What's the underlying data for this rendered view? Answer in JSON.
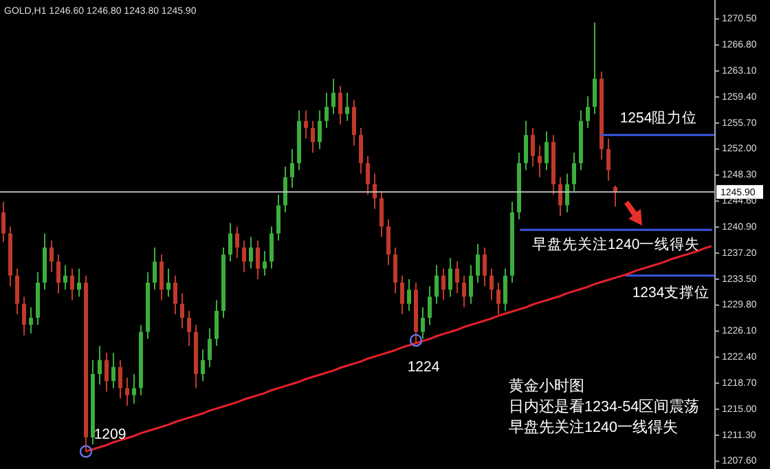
{
  "chart_data": {
    "type": "candlestick",
    "title": "GOLD,H1  1246.60 1246.80 1243.80 1245.90",
    "categories": [
      null,
      null,
      null,
      null,
      null,
      null,
      null,
      null,
      null,
      null,
      null,
      null,
      null,
      null,
      null,
      null,
      null,
      null,
      null,
      null,
      null,
      null,
      null,
      null,
      null,
      null,
      null,
      null,
      null,
      null,
      null,
      null,
      null,
      null,
      null,
      null,
      null,
      null,
      null,
      null,
      null,
      null,
      null,
      null,
      null,
      null,
      null,
      null,
      null,
      null,
      null,
      null,
      null,
      null,
      null,
      null,
      null,
      null,
      null,
      null,
      null,
      null,
      null,
      null,
      null,
      null,
      null,
      null,
      null,
      null,
      null,
      null,
      null,
      null,
      null,
      null,
      null,
      null,
      null,
      null,
      null,
      null,
      null,
      null,
      null,
      null,
      null,
      null,
      null,
      null,
      null,
      null,
      null,
      null,
      null,
      null,
      null,
      null,
      null,
      null,
      null,
      null,
      null,
      null
    ],
    "ohlc": [
      [
        1243,
        1244.5,
        1238.8,
        1240
      ],
      [
        1240,
        1241,
        1232.5,
        1234
      ],
      [
        1234,
        1235,
        1228.5,
        1230
      ],
      [
        1230,
        1231,
        1225.5,
        1227
      ],
      [
        1227,
        1229.5,
        1225.8,
        1228
      ],
      [
        1228,
        1234.5,
        1227,
        1233
      ],
      [
        1233,
        1240,
        1232,
        1238
      ],
      [
        1238,
        1239,
        1234.5,
        1236
      ],
      [
        1236,
        1237,
        1231.5,
        1233
      ],
      [
        1233,
        1235.5,
        1232,
        1234
      ],
      [
        1234,
        1235,
        1230.5,
        1232
      ],
      [
        1232,
        1235,
        1231,
        1233
      ],
      [
        1233,
        1234,
        1209,
        1211
      ],
      [
        1211,
        1222,
        1210,
        1220
      ],
      [
        1220,
        1224,
        1218.5,
        1222
      ],
      [
        1222,
        1223,
        1217.5,
        1219
      ],
      [
        1219,
        1223,
        1218,
        1221
      ],
      [
        1221,
        1222,
        1216.5,
        1218
      ],
      [
        1218,
        1219.5,
        1215.5,
        1217
      ],
      [
        1217,
        1220,
        1215.8,
        1218
      ],
      [
        1218,
        1227,
        1217,
        1226
      ],
      [
        1226,
        1234.5,
        1225,
        1233
      ],
      [
        1233,
        1238,
        1232,
        1236
      ],
      [
        1236,
        1237,
        1230.5,
        1232
      ],
      [
        1232,
        1235,
        1231,
        1233
      ],
      [
        1233,
        1234,
        1228.5,
        1230
      ],
      [
        1230,
        1231.5,
        1226.5,
        1228
      ],
      [
        1228,
        1229,
        1224,
        1226
      ],
      [
        1226,
        1227,
        1218,
        1220
      ],
      [
        1220,
        1223.5,
        1219,
        1222
      ],
      [
        1222,
        1226.5,
        1221,
        1225
      ],
      [
        1225,
        1230.5,
        1224,
        1229
      ],
      [
        1229,
        1238,
        1228,
        1237
      ],
      [
        1237,
        1241.5,
        1236,
        1240
      ],
      [
        1240,
        1241,
        1236.5,
        1238
      ],
      [
        1238,
        1239,
        1234.5,
        1236
      ],
      [
        1236,
        1239.5,
        1235,
        1238
      ],
      [
        1238,
        1239,
        1233.5,
        1235
      ],
      [
        1235,
        1237.5,
        1234,
        1236
      ],
      [
        1236,
        1241,
        1235,
        1240
      ],
      [
        1240,
        1245.5,
        1239,
        1244
      ],
      [
        1244,
        1249.5,
        1243,
        1248
      ],
      [
        1248,
        1252,
        1246.5,
        1250
      ],
      [
        1250,
        1257.5,
        1249,
        1256
      ],
      [
        1256,
        1257.5,
        1253.5,
        1255
      ],
      [
        1255,
        1256,
        1251.5,
        1253
      ],
      [
        1253,
        1257.5,
        1252,
        1256
      ],
      [
        1256,
        1260,
        1255,
        1258
      ],
      [
        1258,
        1262,
        1257,
        1260
      ],
      [
        1260,
        1261,
        1255.5,
        1257
      ],
      [
        1257,
        1260,
        1256,
        1258
      ],
      [
        1258,
        1259,
        1252.5,
        1254
      ],
      [
        1254,
        1255,
        1248.5,
        1250
      ],
      [
        1250,
        1251,
        1245.5,
        1247
      ],
      [
        1247,
        1248.5,
        1243.5,
        1245
      ],
      [
        1245,
        1246,
        1239.5,
        1241
      ],
      [
        1241,
        1242,
        1235.5,
        1237
      ],
      [
        1237,
        1238,
        1231.5,
        1233
      ],
      [
        1233,
        1234,
        1228.5,
        1230
      ],
      [
        1230,
        1233.5,
        1229,
        1232
      ],
      [
        1232,
        1233,
        1224.5,
        1226
      ],
      [
        1226,
        1229.5,
        1225,
        1228
      ],
      [
        1228,
        1232.5,
        1227,
        1231
      ],
      [
        1231,
        1235.5,
        1230,
        1234
      ],
      [
        1234,
        1235,
        1230.5,
        1232
      ],
      [
        1232,
        1236.5,
        1231,
        1235
      ],
      [
        1235,
        1236,
        1231.5,
        1233
      ],
      [
        1233,
        1234,
        1229.5,
        1231
      ],
      [
        1231,
        1235.5,
        1230,
        1234
      ],
      [
        1234,
        1238.5,
        1233,
        1237
      ],
      [
        1237,
        1238,
        1232.5,
        1234
      ],
      [
        1234,
        1235,
        1230.5,
        1232
      ],
      [
        1232,
        1233,
        1228.5,
        1230
      ],
      [
        1230,
        1235,
        1229,
        1234
      ],
      [
        1234,
        1244.5,
        1233,
        1243
      ],
      [
        1243,
        1251.5,
        1242,
        1250
      ],
      [
        1250,
        1256,
        1249,
        1254
      ],
      [
        1254,
        1255,
        1249.5,
        1251
      ],
      [
        1251,
        1252.5,
        1248,
        1250
      ],
      [
        1250,
        1254.5,
        1249,
        1253
      ],
      [
        1253,
        1254,
        1245.5,
        1247
      ],
      [
        1247,
        1248,
        1242.5,
        1244
      ],
      [
        1244,
        1248.5,
        1243,
        1247
      ],
      [
        1247,
        1251.5,
        1246,
        1250
      ],
      [
        1250,
        1257.5,
        1249,
        1256
      ],
      [
        1256,
        1259.5,
        1255,
        1258
      ],
      [
        1258,
        1270,
        1257,
        1262
      ],
      [
        1262,
        1263,
        1250.5,
        1252
      ],
      [
        1252,
        1253.5,
        1247.5,
        1249
      ],
      [
        1246.6,
        1246.8,
        1243.8,
        1245.9
      ],
      null,
      null,
      null,
      null,
      null,
      null,
      null,
      null,
      null,
      null,
      null,
      null,
      null,
      null
    ],
    "colors": [
      "#c0392b",
      "#c0392b",
      "#c0392b",
      "#c0392b",
      "#3dae3d",
      "#3dae3d",
      "#3dae3d",
      "#c0392b",
      "#c0392b",
      "#3dae3d",
      "#c0392b",
      "#3dae3d",
      "#c0392b",
      "#3dae3d",
      "#3dae3d",
      "#c0392b",
      "#3dae3d",
      "#c0392b",
      "#c0392b",
      "#3dae3d",
      "#3dae3d",
      "#3dae3d",
      "#3dae3d",
      "#c0392b",
      "#3dae3d",
      "#c0392b",
      "#c0392b",
      "#c0392b",
      "#c0392b",
      "#3dae3d",
      "#3dae3d",
      "#3dae3d",
      "#3dae3d",
      "#3dae3d",
      "#c0392b",
      "#c0392b",
      "#3dae3d",
      "#c0392b",
      "#3dae3d",
      "#3dae3d",
      "#3dae3d",
      "#3dae3d",
      "#3dae3d",
      "#3dae3d",
      "#c0392b",
      "#c0392b",
      "#3dae3d",
      "#3dae3d",
      "#3dae3d",
      "#c0392b",
      "#3dae3d",
      "#c0392b",
      "#c0392b",
      "#c0392b",
      "#c0392b",
      "#c0392b",
      "#c0392b",
      "#c0392b",
      "#c0392b",
      "#3dae3d",
      "#c0392b",
      "#3dae3d",
      "#3dae3d",
      "#3dae3d",
      "#c0392b",
      "#3dae3d",
      "#c0392b",
      "#c0392b",
      "#3dae3d",
      "#3dae3d",
      "#c0392b",
      "#c0392b",
      "#c0392b",
      "#3dae3d",
      "#3dae3d",
      "#3dae3d",
      "#3dae3d",
      "#c0392b",
      "#c0392b",
      "#3dae3d",
      "#c0392b",
      "#c0392b",
      "#3dae3d",
      "#3dae3d",
      "#3dae3d",
      "#3dae3d",
      "#3dae3d",
      "#c0392b",
      "#c0392b",
      "#c0392b",
      null,
      null,
      null,
      null,
      null,
      null,
      null,
      null,
      null,
      null,
      null,
      null,
      null,
      null
    ],
    "series": [
      {
        "type": "line",
        "color": "#e8202a",
        "values": [
          null,
          null,
          null,
          null,
          null,
          null,
          null,
          null,
          null,
          null,
          null,
          null,
          1209.0,
          1209.3,
          1209.6,
          1209.9,
          1210.3,
          1210.6,
          1210.9,
          1211.2,
          1211.6,
          1211.9,
          1212.2,
          1212.5,
          1212.8,
          1213.2,
          1213.5,
          1213.8,
          1214.1,
          1214.4,
          1214.8,
          1215.1,
          1215.4,
          1215.7,
          1216.0,
          1216.4,
          1216.7,
          1217.0,
          1217.3,
          1217.7,
          1218.0,
          1218.3,
          1218.6,
          1218.9,
          1219.3,
          1219.6,
          1219.9,
          1220.2,
          1220.5,
          1220.9,
          1221.2,
          1221.5,
          1221.8,
          1222.2,
          1222.5,
          1222.8,
          1223.1,
          1223.4,
          1223.8,
          1224.1,
          1224.4,
          1224.7,
          1225.0,
          1225.4,
          1225.7,
          1226.0,
          1226.3,
          1226.7,
          1227.0,
          1227.3,
          1227.6,
          1227.9,
          1228.3,
          1228.6,
          1228.9,
          1229.2,
          1229.5,
          1229.9,
          1230.2,
          1230.5,
          1230.8,
          1231.1,
          1231.5,
          1231.8,
          1232.1,
          1232.4,
          1232.8,
          1233.1,
          1233.4,
          1233.7,
          1234.0,
          1234.3,
          1234.7,
          1235.0,
          1235.3,
          1235.6,
          1235.9,
          1236.3,
          1236.6,
          1236.9,
          1237.2,
          1237.5,
          1237.9,
          1238.2
        ]
      },
      {
        "type": "scatter",
        "marker": "circle",
        "color": "#6a78e8",
        "values": [
          null,
          null,
          null,
          null,
          null,
          null,
          null,
          null,
          null,
          null,
          null,
          null,
          1209,
          null,
          null,
          null,
          null,
          null,
          null,
          null,
          null,
          null,
          null,
          null,
          null,
          null,
          null,
          null,
          null,
          null,
          null,
          null,
          null,
          null,
          null,
          null,
          null,
          null,
          null,
          null,
          null,
          null,
          null,
          null,
          null,
          null,
          null,
          null,
          null,
          null,
          null,
          null,
          null,
          null,
          null,
          null,
          null,
          null,
          null,
          null,
          1224.8,
          null,
          null,
          null,
          null,
          null,
          null,
          null,
          null,
          null,
          null,
          null,
          null,
          null,
          null,
          null,
          null,
          null,
          null,
          null,
          null,
          null,
          null,
          null,
          null,
          null,
          null,
          null,
          null,
          null,
          null,
          null,
          null,
          null,
          null,
          null,
          null,
          null,
          null,
          null,
          null,
          null,
          null,
          null
        ]
      }
    ],
    "ref_lines": [
      {
        "axis": "y",
        "value": 1245.9,
        "label": "1245.90",
        "color": "#c8c8c8"
      },
      {
        "axis": "y",
        "value": 1254,
        "label": "1254阻力位",
        "color": "#3a56e0"
      },
      {
        "axis": "y",
        "value": 1240.5,
        "label": "早盘先关注1240一线得失",
        "color": "#3a56e0"
      },
      {
        "axis": "y",
        "value": 1234,
        "label": "1234支撑位",
        "color": "#3a56e0"
      }
    ],
    "annotations": [
      "1209",
      "1224",
      "黄金小时图",
      "日内还是看1234-54区间震荡",
      "早盘先关注1240一线得失"
    ],
    "ylim": [
      1206.5,
      1273.2
    ],
    "yticks": [
      {
        "value": 1270.5,
        "label": "1270.50"
      },
      {
        "value": 1266.8,
        "label": "1266.80"
      },
      {
        "value": 1263.1,
        "label": "1263.10"
      },
      {
        "value": 1259.4,
        "label": "1259.40"
      },
      {
        "value": 1255.7,
        "label": "1255.70"
      },
      {
        "value": 1252,
        "label": "1252.00"
      },
      {
        "value": 1248.3,
        "label": "1248.30"
      },
      {
        "value": 1244.6,
        "label": "1244.60"
      },
      {
        "value": 1240.9,
        "label": "1240.90"
      },
      {
        "value": 1237.2,
        "label": "1237.20"
      },
      {
        "value": 1233.5,
        "label": "1233.50"
      },
      {
        "value": 1229.8,
        "label": "1229.80"
      },
      {
        "value": 1226.1,
        "label": "1226.10"
      },
      {
        "value": 1222.4,
        "label": "1222.40"
      },
      {
        "value": 1218.7,
        "label": "1218.70"
      },
      {
        "value": 1215,
        "label": "1215.00"
      },
      {
        "value": 1211.3,
        "label": "1211.30"
      },
      {
        "value": 1207.6,
        "label": "1207.60"
      }
    ],
    "tick_labels": "y"
  }
}
